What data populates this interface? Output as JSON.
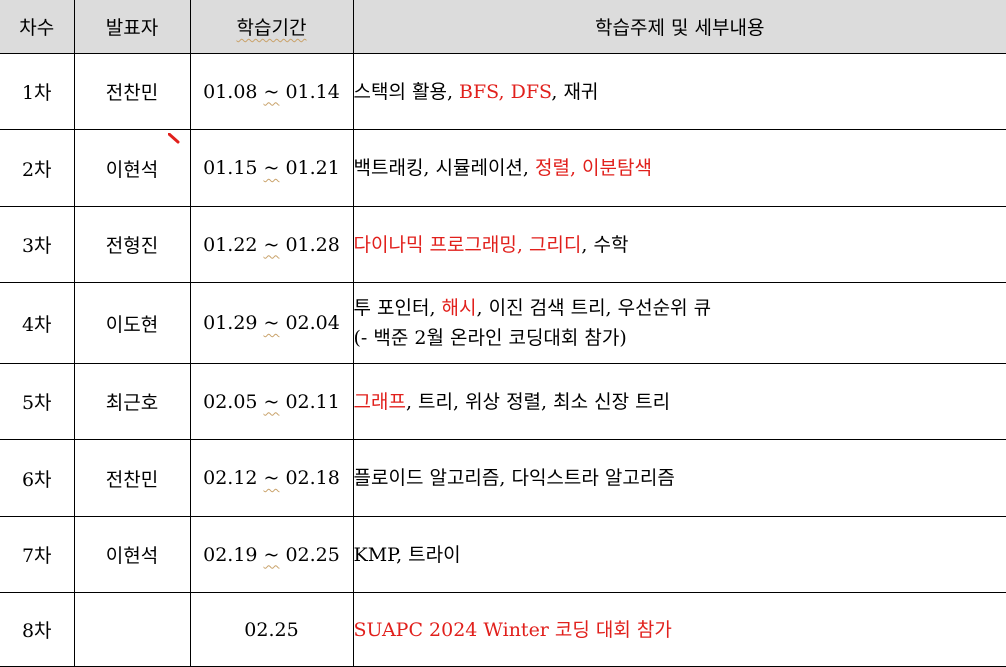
{
  "header": {
    "round": "차수",
    "presenter": "발표자",
    "period": "학습기간",
    "topic": "학습주제 및 세부내용"
  },
  "rows": [
    {
      "round": "1차",
      "presenter": "전찬민",
      "period_start": "01.08",
      "period_sep": "~",
      "period_end": "01.14",
      "topic_lines": [
        [
          {
            "text": "스택의 활용, ",
            "red": false
          },
          {
            "text": "BFS, DFS",
            "red": true
          },
          {
            "text": ", 재귀",
            "red": false
          }
        ]
      ]
    },
    {
      "round": "2차",
      "presenter": "이현석",
      "period_start": "01.15",
      "period_sep": "~",
      "period_end": "01.21",
      "topic_lines": [
        [
          {
            "text": "백트래킹, 시뮬레이션, ",
            "red": false
          },
          {
            "text": "정렬, 이분탐색",
            "red": true
          }
        ]
      ]
    },
    {
      "round": "3차",
      "presenter": "전형진",
      "period_start": "01.22",
      "period_sep": "~",
      "period_end": "01.28",
      "topic_lines": [
        [
          {
            "text": "다이나믹 프로그래밍, 그리디",
            "red": true
          },
          {
            "text": ", 수학",
            "red": false
          }
        ]
      ]
    },
    {
      "round": "4차",
      "presenter": "이도현",
      "period_start": "01.29",
      "period_sep": "~",
      "period_end": "02.04",
      "topic_lines": [
        [
          {
            "text": "투 포인터, ",
            "red": false
          },
          {
            "text": "해시",
            "red": true
          },
          {
            "text": ", 이진 검색 트리, 우선순위 큐",
            "red": false
          }
        ],
        [
          {
            "text": "(- 백준 2월 온라인 코딩대회 참가)",
            "red": false
          }
        ]
      ]
    },
    {
      "round": "5차",
      "presenter": "최근호",
      "period_start": "02.05",
      "period_sep": "~",
      "period_end": "02.11",
      "topic_lines": [
        [
          {
            "text": "그래프",
            "red": true
          },
          {
            "text": ", 트리, 위상 정렬, 최소 신장 트리",
            "red": false
          }
        ]
      ]
    },
    {
      "round": "6차",
      "presenter": "전찬민",
      "period_start": "02.12",
      "period_sep": "~",
      "period_end": "02.18",
      "topic_lines": [
        [
          {
            "text": "플로이드 알고리즘, 다익스트라 알고리즘",
            "red": false
          }
        ]
      ]
    },
    {
      "round": "7차",
      "presenter": "이현석",
      "period_start": "02.19",
      "period_sep": "~",
      "period_end": "02.25",
      "topic_lines": [
        [
          {
            "text": "KMP, 트라이",
            "red": false
          }
        ]
      ]
    },
    {
      "round": "8차",
      "presenter": "",
      "period_start": "02.25",
      "period_sep": "",
      "period_end": "",
      "topic_lines": [
        [
          {
            "text": "SUAPC 2024 Winter 코딩 대회 참가",
            "red": true
          }
        ]
      ]
    }
  ],
  "colors": {
    "header_bg": "#dcdcdc",
    "highlight_text": "#e1201c",
    "border": "#000000",
    "spellcheck_underline": "#c9a26a",
    "pen_mark": "#e1201c"
  }
}
